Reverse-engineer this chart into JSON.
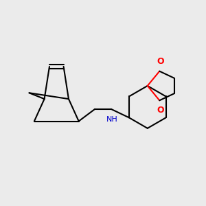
{
  "background_color": "#ebebeb",
  "bond_color": "#000000",
  "N_color": "#0000cc",
  "O_color": "#ff0000",
  "line_width": 1.5,
  "figsize": [
    3.0,
    3.0
  ],
  "dpi": 100,
  "xlim": [
    0,
    10
  ],
  "ylim": [
    0,
    10
  ]
}
